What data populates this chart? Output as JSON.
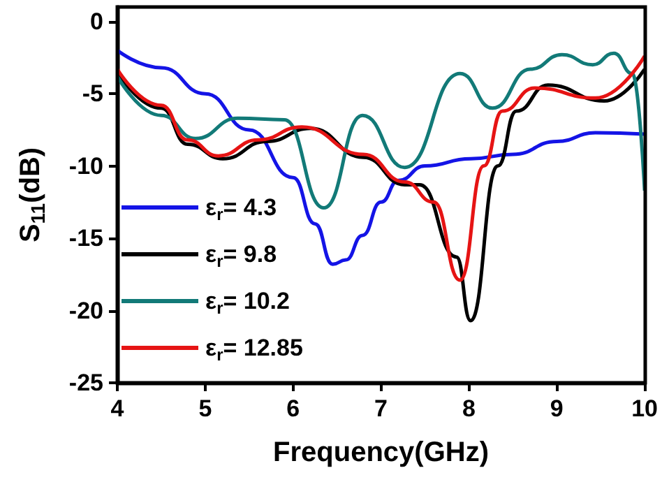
{
  "chart_data": {
    "type": "line",
    "xlabel": "Frequency(GHz)",
    "ylabel": "S$_{11}$(dB)",
    "xlim": [
      4,
      10
    ],
    "xticks": [
      4,
      5,
      6,
      7,
      8,
      9,
      10
    ],
    "ylim": [
      -25,
      1
    ],
    "yticks": [
      -25,
      -20,
      -15,
      -10,
      -5,
      0
    ],
    "grid": false,
    "legend": "bottom left",
    "marker": "none",
    "line_style": "solid",
    "series": [
      {
        "name": "ε$_{r}$= 4.3",
        "color": "#1414e6",
        "x": [
          4,
          4.5,
          5,
          5.5,
          6,
          6.25,
          6.45,
          6.6,
          6.79,
          7,
          7.2,
          7.5,
          8.02,
          8.5,
          9,
          9.44,
          10
        ],
        "values": [
          -2,
          -3.2,
          -5,
          -7.5,
          -10.8,
          -14,
          -16.8,
          -16.5,
          -14.8,
          -12.5,
          -11,
          -10,
          -9.5,
          -9.2,
          -8.3,
          -7.7,
          -7.8
        ]
      },
      {
        "name": "ε$_{r}$= 9.8",
        "color": "#000000",
        "x": [
          4,
          4.5,
          4.8,
          5.2,
          5.7,
          6.2,
          6.8,
          7.27,
          7.44,
          7.86,
          8.02,
          8.33,
          8.54,
          8.9,
          9.54,
          10
        ],
        "values": [
          -3.5,
          -6,
          -8.5,
          -9.5,
          -8.3,
          -7.4,
          -9.4,
          -11.3,
          -11.3,
          -16.3,
          -20.7,
          -10,
          -6.2,
          -4.4,
          -5.5,
          -3.3
        ]
      },
      {
        "name": "ε$_{r}$= 10.2",
        "color": "#127a78",
        "x": [
          4,
          4.5,
          4.89,
          5.37,
          5.9,
          6.35,
          6.79,
          7.27,
          7.9,
          8.27,
          8.7,
          9.06,
          9.41,
          9.65,
          9.86,
          10
        ],
        "values": [
          -3.8,
          -6.5,
          -8.1,
          -6.7,
          -6.8,
          -12.9,
          -6.5,
          -10.1,
          -3.6,
          -6,
          -3.3,
          -2.3,
          -3,
          -2.2,
          -3.6,
          -11.7
        ]
      },
      {
        "name": "ε$_{r}$= 12.85",
        "color": "#e61414",
        "x": [
          4,
          4.5,
          4.8,
          5.15,
          5.6,
          6.1,
          6.8,
          7.27,
          7.6,
          7.9,
          8.17,
          8.38,
          8.75,
          9.44,
          10
        ],
        "values": [
          -3.3,
          -5.8,
          -8.2,
          -9.3,
          -8.2,
          -7.3,
          -9.2,
          -11.1,
          -12.5,
          -17.9,
          -10,
          -6.2,
          -4.6,
          -5.3,
          -2.4
        ]
      }
    ]
  }
}
